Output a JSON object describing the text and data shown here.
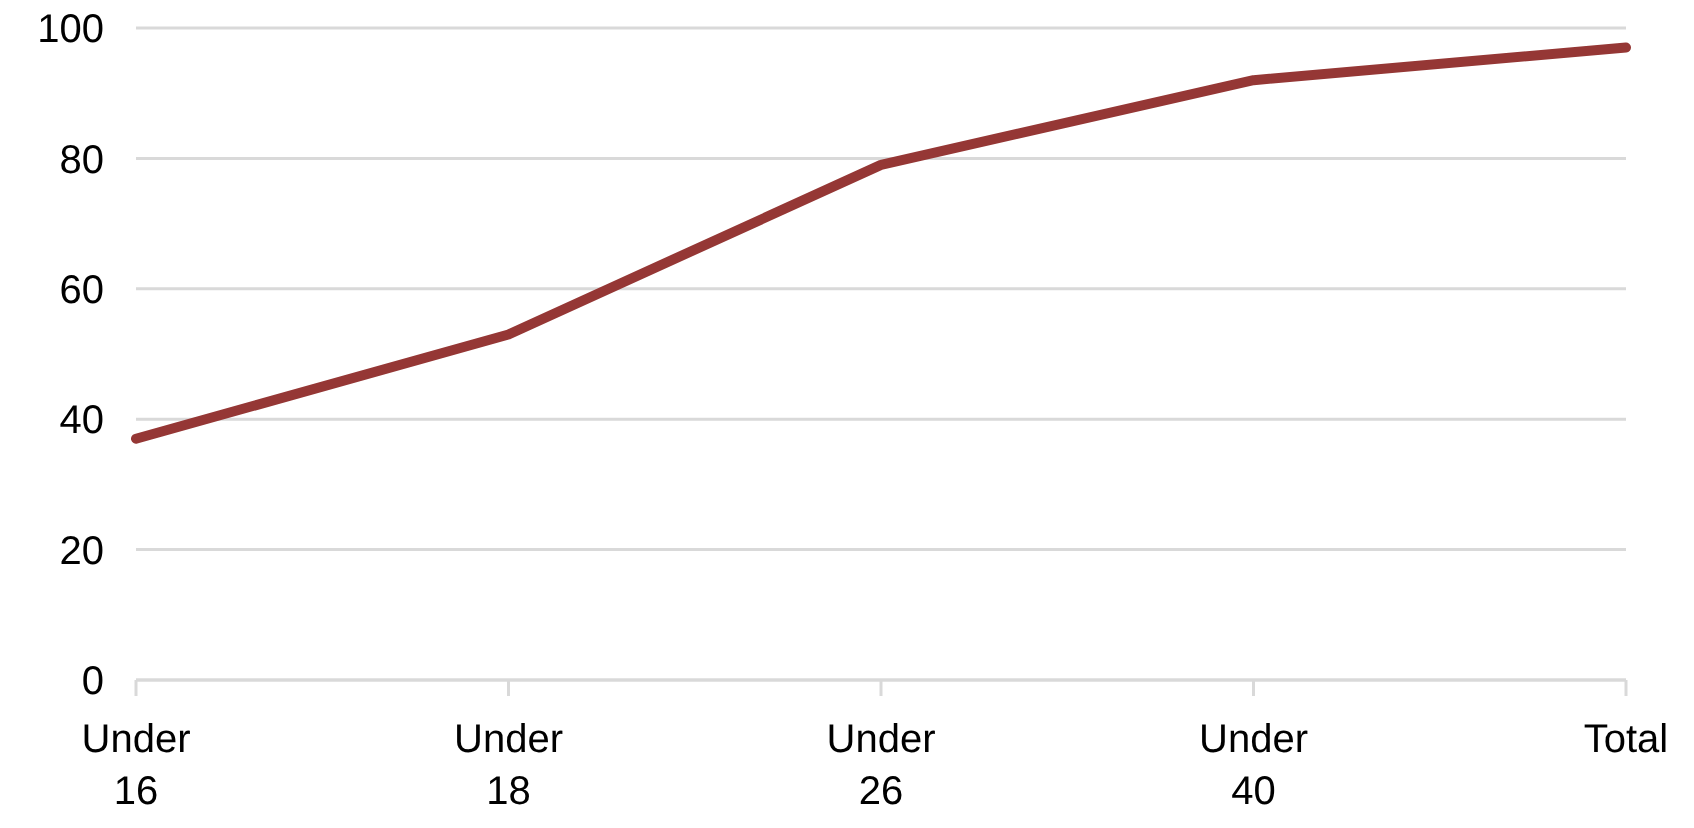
{
  "chart_data": {
    "type": "line",
    "categories": [
      "Under 16",
      "Under 18",
      "Under 26",
      "Under 40",
      "Total"
    ],
    "series": [
      {
        "color": "#953735",
        "values": [
          37,
          53,
          79,
          92,
          97
        ]
      }
    ],
    "ylim": [
      0,
      100
    ],
    "yticks": [
      0,
      20,
      40,
      60,
      80,
      100
    ],
    "grid": "y",
    "legend": false,
    "marker": "none",
    "line_style": "solid"
  }
}
